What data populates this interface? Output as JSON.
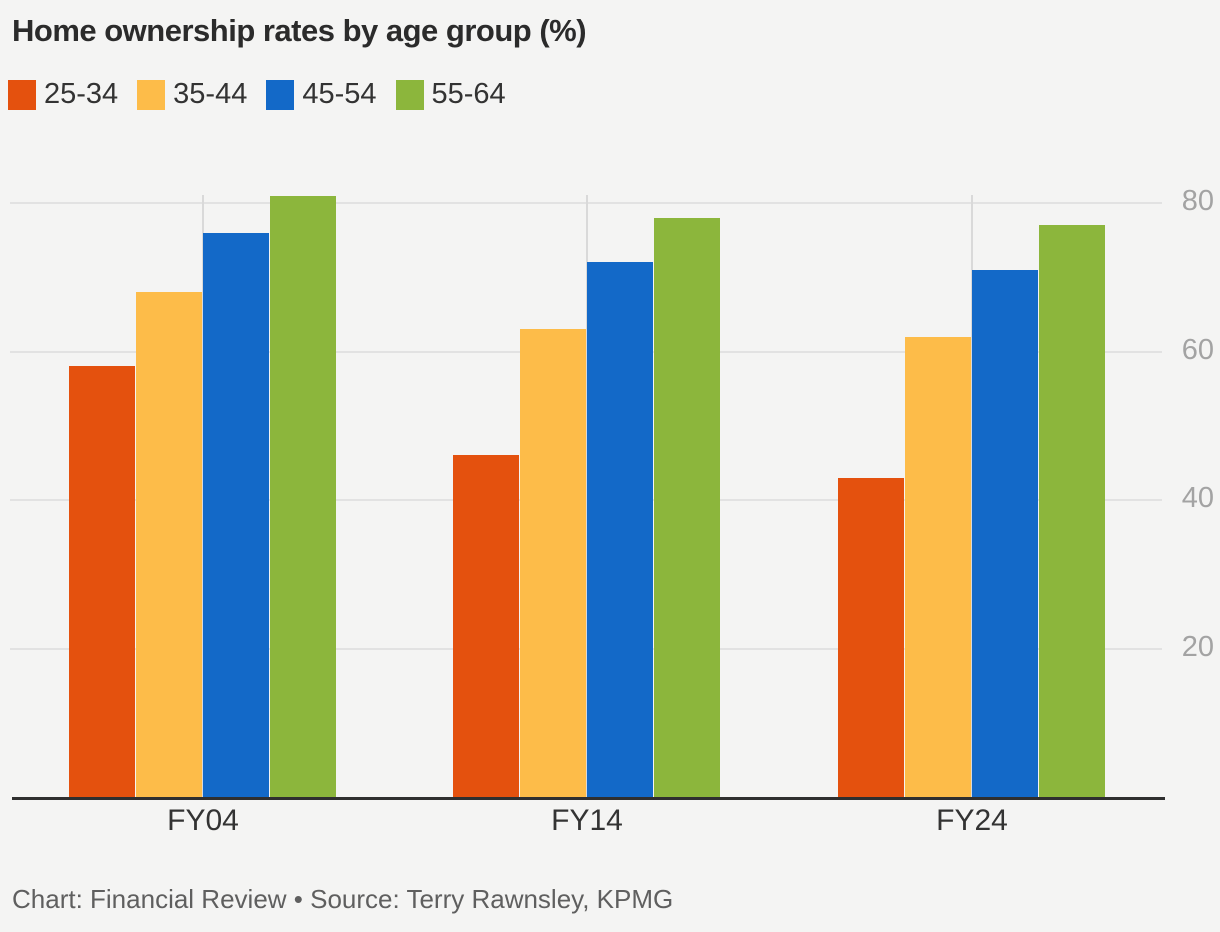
{
  "title": "Home ownership rates by age group (%)",
  "footer": "Chart: Financial Review • Source: Terry Rawnsley, KPMG",
  "colors": {
    "background": "#f4f4f3",
    "gridline": "#e2e2e2",
    "category_tickline": "#d9d9d9",
    "axis_line": "#2f2f2f",
    "title_text": "#2b2b2b",
    "category_label_text": "#333333",
    "ytick_text": "#a3a3a3",
    "footer_text": "#5f5f5f"
  },
  "chart_data": {
    "type": "bar",
    "title": "Home ownership rates by age group (%)",
    "categories": [
      "FY04",
      "FY14",
      "FY24"
    ],
    "series": [
      {
        "name": "25-34",
        "color": "#e4510e",
        "values": [
          58,
          46,
          43
        ]
      },
      {
        "name": "35-44",
        "color": "#fdbc49",
        "values": [
          68,
          63,
          62
        ]
      },
      {
        "name": "45-54",
        "color": "#1369c8",
        "values": [
          76,
          72,
          71
        ]
      },
      {
        "name": "55-64",
        "color": "#8cb63c",
        "values": [
          81,
          78,
          77
        ]
      }
    ],
    "xlabel": "",
    "ylabel": "",
    "ylim": [
      0,
      80
    ],
    "yticks": [
      20,
      40,
      60,
      80
    ],
    "grid": true,
    "legend_position": "top",
    "ytick_side": "right",
    "source": "Chart: Financial Review • Source: Terry Rawnsley, KPMG"
  }
}
